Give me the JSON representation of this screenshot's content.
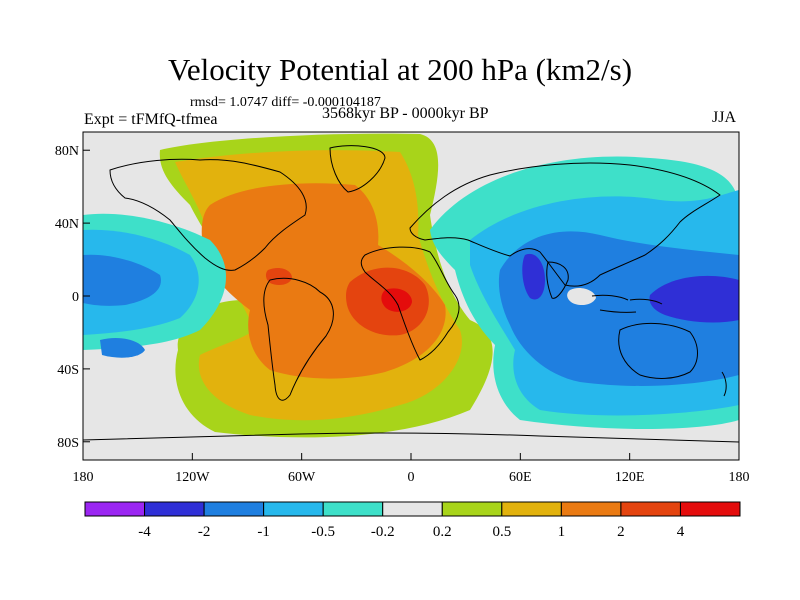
{
  "title": "Velocity Potential at 200 hPa (km2/s)",
  "stats": "rmsd= 1.0747 diff= -0.000104187",
  "left_label": "Expt = tFMfQ-tfmea",
  "center_label": "3568kyr BP - 0000kyr BP",
  "right_label": "JJA",
  "chart_data": {
    "type": "contour_map",
    "variable": "Velocity Potential at 200 hPa",
    "units": "km2/s",
    "season": "JJA",
    "projection": "cylindrical equidistant",
    "lon_range": [
      -180,
      180
    ],
    "lat_range": [
      -90,
      90
    ],
    "x_ticks": [
      {
        "value": -180,
        "label": "180"
      },
      {
        "value": -120,
        "label": "120W"
      },
      {
        "value": -60,
        "label": "60W"
      },
      {
        "value": 0,
        "label": "0"
      },
      {
        "value": 60,
        "label": "60E"
      },
      {
        "value": 120,
        "label": "120E"
      },
      {
        "value": 180,
        "label": "180"
      }
    ],
    "y_ticks": [
      {
        "value": 80,
        "label": "80N"
      },
      {
        "value": 40,
        "label": "40N"
      },
      {
        "value": 0,
        "label": "0"
      },
      {
        "value": -40,
        "label": "40S"
      },
      {
        "value": -80,
        "label": "80S"
      }
    ],
    "contour_levels": [
      "-4",
      "-2",
      "-1",
      "-0.5",
      "-0.2",
      "0.2",
      "0.5",
      "1",
      "2",
      "4"
    ],
    "colorbar_colors": [
      "#9b26f2",
      "#2f2fd6",
      "#1f7fe0",
      "#27b8ec",
      "#3ee0c9",
      "#e6e6e6",
      "#a8d41a",
      "#e2b20d",
      "#ea7a12",
      "#e4440f",
      "#e40c0c"
    ],
    "features": [
      {
        "name": "positive-center-tropical-atlantic-africa",
        "lon": -10,
        "lat": 0,
        "value": "> 4"
      },
      {
        "name": "negative-center-western-pacific",
        "lon": 155,
        "lat": 0,
        "value": "< -2"
      },
      {
        "name": "negative-center-arabian-sea",
        "lon": 65,
        "lat": 10,
        "value": "< -2"
      },
      {
        "name": "negative-center-eastern-pacific",
        "lon": -170,
        "lat": 10,
        "value": "-1 to -0.5"
      }
    ]
  }
}
